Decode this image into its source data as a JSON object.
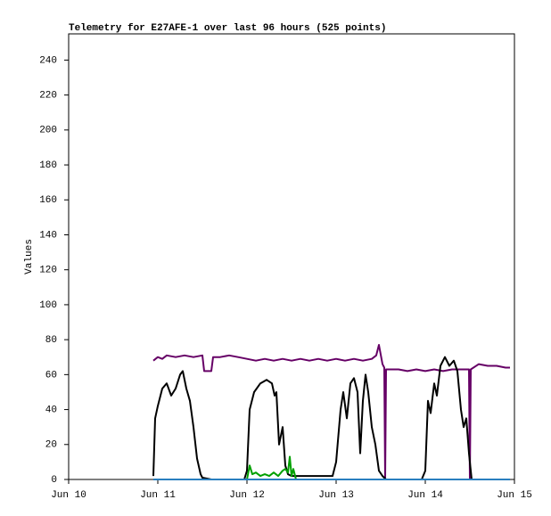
{
  "chart_data": {
    "type": "line",
    "title": "Telemetry for E27AFE-1 over last 96 hours (525 points)",
    "y_label": "Values",
    "xlim": [
      10,
      15
    ],
    "xticks": [
      {
        "value": 10,
        "label": "Jun 10"
      },
      {
        "value": 11,
        "label": "Jun 11"
      },
      {
        "value": 12,
        "label": "Jun 12"
      },
      {
        "value": 13,
        "label": "Jun 13"
      },
      {
        "value": 14,
        "label": "Jun 14"
      },
      {
        "value": 15,
        "label": "Jun 15"
      }
    ],
    "ylim": [
      0,
      255
    ],
    "yticks": [
      0,
      20,
      40,
      60,
      80,
      100,
      120,
      140,
      160,
      180,
      200,
      220,
      240
    ],
    "series": [
      {
        "color": "#660066",
        "x": [
          10.95,
          11.0,
          11.05,
          11.1,
          11.2,
          11.3,
          11.4,
          11.5,
          11.52,
          11.6,
          11.62,
          11.7,
          11.8,
          11.9,
          12.0,
          12.1,
          12.2,
          12.3,
          12.4,
          12.5,
          12.6,
          12.7,
          12.8,
          12.9,
          13.0,
          13.1,
          13.2,
          13.3,
          13.4,
          13.45,
          13.48,
          13.52,
          13.54,
          13.55,
          13.56,
          13.7,
          13.8,
          13.9,
          14.0,
          14.1,
          14.2,
          14.3,
          14.4,
          14.49,
          14.5,
          14.51,
          14.6,
          14.7,
          14.8,
          14.9,
          14.95
        ],
        "values": [
          68,
          70,
          69,
          71,
          70,
          71,
          70,
          71,
          62,
          62,
          70,
          70,
          71,
          70,
          69,
          68,
          69,
          68,
          69,
          68,
          69,
          68,
          69,
          68,
          69,
          68,
          69,
          68,
          69,
          71,
          77,
          66,
          64,
          0,
          63,
          63,
          62,
          63,
          62,
          63,
          62,
          63,
          63,
          63,
          0,
          63,
          66,
          65,
          65,
          64,
          64
        ]
      },
      {
        "color": "#000000",
        "x": [
          10.95,
          10.97,
          11.0,
          11.05,
          11.1,
          11.15,
          11.2,
          11.25,
          11.28,
          11.32,
          11.36,
          11.4,
          11.44,
          11.48,
          11.5,
          11.6,
          11.8,
          11.97,
          12.0,
          12.03,
          12.08,
          12.15,
          12.22,
          12.28,
          12.31,
          12.33,
          12.36,
          12.4,
          12.43,
          12.46,
          12.5,
          12.7,
          12.96,
          13.0,
          13.05,
          13.08,
          13.12,
          13.16,
          13.2,
          13.24,
          13.27,
          13.3,
          13.33,
          13.36,
          13.4,
          13.44,
          13.48,
          13.52,
          13.56,
          13.8,
          13.96,
          14.0,
          14.03,
          14.06,
          14.1,
          14.13,
          14.17,
          14.22,
          14.27,
          14.32,
          14.36,
          14.4,
          14.43,
          14.46,
          14.49,
          14.52,
          14.7,
          14.95
        ],
        "values": [
          2,
          35,
          42,
          52,
          55,
          48,
          52,
          60,
          62,
          52,
          45,
          30,
          12,
          3,
          1,
          0,
          0,
          0,
          5,
          40,
          50,
          55,
          57,
          55,
          48,
          50,
          20,
          30,
          8,
          3,
          2,
          2,
          2,
          10,
          40,
          50,
          35,
          55,
          58,
          50,
          15,
          45,
          60,
          50,
          30,
          20,
          5,
          2,
          0,
          0,
          0,
          5,
          45,
          38,
          55,
          48,
          65,
          70,
          65,
          68,
          62,
          40,
          30,
          35,
          15,
          0,
          0,
          0
        ]
      },
      {
        "color": "#00a000",
        "x": [
          12.0,
          12.03,
          12.06,
          12.1,
          12.15,
          12.2,
          12.25,
          12.3,
          12.35,
          12.4,
          12.43,
          12.46,
          12.48,
          12.5,
          12.52,
          12.55
        ],
        "values": [
          0,
          8,
          3,
          4,
          2,
          3,
          2,
          4,
          2,
          5,
          6,
          4,
          13,
          2,
          6,
          0
        ]
      },
      {
        "color": "#2a7fbf",
        "x": [
          10.95,
          11.5,
          12.0,
          12.5,
          13.0,
          13.5,
          14.0,
          14.5,
          14.95
        ],
        "values": [
          0,
          0,
          0,
          0,
          0,
          0,
          0,
          0,
          0
        ]
      }
    ]
  }
}
